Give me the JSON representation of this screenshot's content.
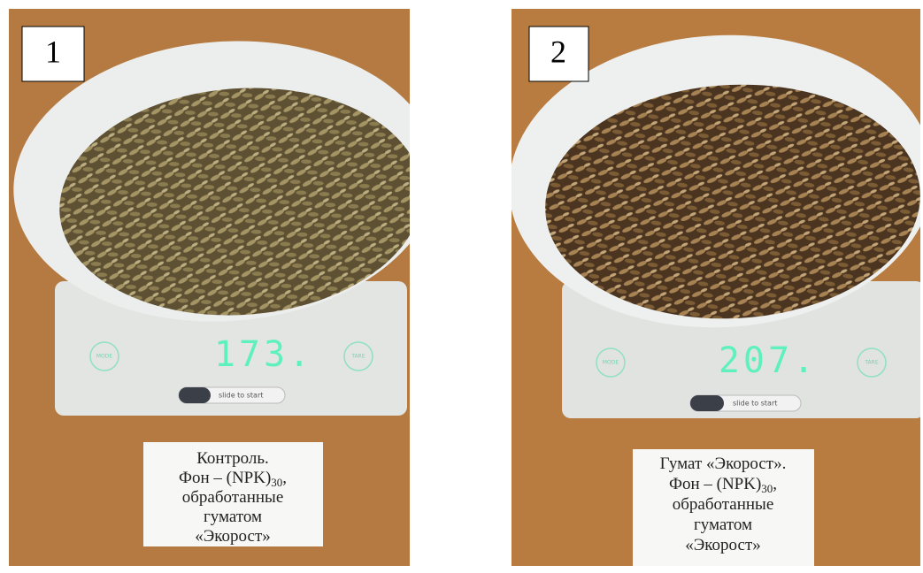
{
  "panels": [
    {
      "number": "1",
      "display": "173.",
      "mode": "MODE",
      "tare": "TARE",
      "slide": "slide to start",
      "label": [
        "Контроль.",
        {
          "text": "Фон – (NPK)",
          "sub": "30",
          "tail": ","
        },
        "обработанные",
        "гуматом",
        "«Экорост»"
      ]
    },
    {
      "number": "2",
      "display": "207.",
      "mode": "MODE",
      "tare": "TARE",
      "slide": "slide to start",
      "label": [
        "Гумат «Экорост».",
        {
          "text": "Фон – (NPK)",
          "sub": "30",
          "tail": ","
        },
        "обработанные",
        "гуматом",
        "«Экорост»"
      ]
    }
  ]
}
